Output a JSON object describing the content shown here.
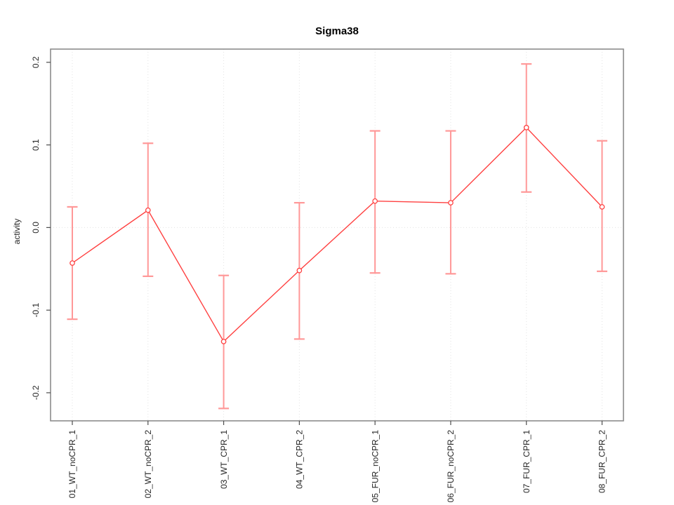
{
  "chart_data": {
    "type": "line",
    "title": "Sigma38",
    "xlabel": "",
    "ylabel": "activity",
    "categories": [
      "01_WT_noCPR_1",
      "02_WT_noCPR_2",
      "03_WT_CPR_1",
      "04_WT_CPR_2",
      "05_FUR_noCPR_1",
      "06_FUR_noCPR_2",
      "07_FUR_CPR_1",
      "08_FUR_CPR_2"
    ],
    "series": [
      {
        "name": "activity",
        "values": [
          -0.043,
          0.021,
          -0.138,
          -0.052,
          0.032,
          0.03,
          0.121,
          0.025
        ],
        "error_low": [
          -0.111,
          -0.059,
          -0.219,
          -0.135,
          -0.055,
          -0.056,
          0.043,
          -0.053
        ],
        "error_high": [
          0.025,
          0.102,
          -0.058,
          0.03,
          0.117,
          0.117,
          0.198,
          0.105
        ]
      }
    ],
    "yticks": [
      -0.2,
      -0.1,
      0.0,
      0.1,
      0.2
    ],
    "ytick_labels": [
      "-0.2",
      "-0.1",
      "0.0",
      "0.1",
      "0.2"
    ],
    "ylim": [
      -0.234,
      0.216
    ],
    "grid": {
      "vertical_dotted_at_each_category": true,
      "horizontal_dotted_at_zero": true
    },
    "legend": "none",
    "marker": "open-circle",
    "colors": {
      "point_line": "#ff4040",
      "error_bar": "#ff9898",
      "grid": "#e3e3e3",
      "box": "#8c8c8c",
      "tick": "#4d4d4d",
      "text": "#262626",
      "title": "#000000"
    }
  }
}
